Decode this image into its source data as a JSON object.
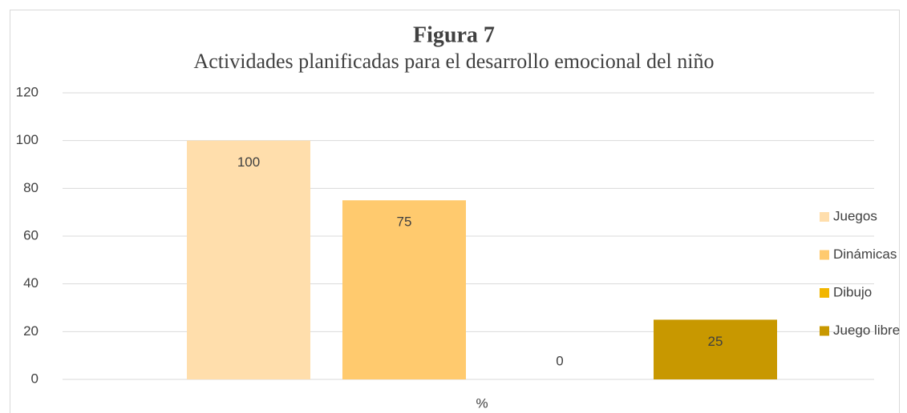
{
  "chart_data": {
    "type": "bar",
    "title": "Figura 7",
    "subtitle": "Actividades planificadas para el desarrollo emocional del niño",
    "categories": [
      "%"
    ],
    "series": [
      {
        "name": "Juegos",
        "color": "#ffdeac",
        "values": [
          100
        ]
      },
      {
        "name": "Dinámicas",
        "color": "#ffca6e",
        "values": [
          75
        ]
      },
      {
        "name": "Dibujo",
        "color": "#f2b600",
        "values": [
          0
        ]
      },
      {
        "name": "Juego libre",
        "color": "#c89800",
        "values": [
          25
        ]
      }
    ],
    "ylim": [
      0,
      120
    ],
    "yticks": [
      0,
      20,
      40,
      60,
      80,
      100,
      120
    ],
    "grid": true,
    "legend": "right"
  }
}
